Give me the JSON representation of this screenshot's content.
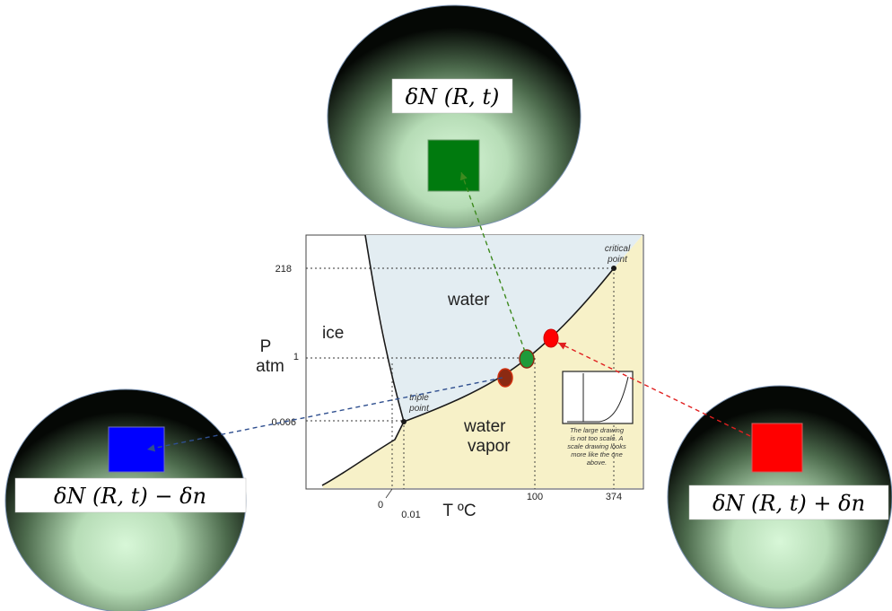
{
  "bubbles": {
    "top": {
      "label": "δN (R, t)",
      "square_color": "#007a0e",
      "arrow_color": "#3e8a1f"
    },
    "left": {
      "label": "δN (R, t) − δn",
      "square_color": "#0000ff",
      "arrow_color": "#2f4f8f"
    },
    "right": {
      "label": "δN (R, t) + δn",
      "square_color": "#ff0000",
      "arrow_color": "#e02020"
    }
  },
  "diagram": {
    "regions": {
      "ice": "ice",
      "water": "water",
      "vapor_line1": "water",
      "vapor_line2": "vapor"
    },
    "y_axis": {
      "label_line1": "P",
      "label_line2": "atm",
      "ticks": [
        "218",
        "1",
        "0.006"
      ]
    },
    "x_axis": {
      "label": "T ºC",
      "ticks": [
        "0",
        "0.01",
        "100",
        "374"
      ]
    },
    "annotations": {
      "critical_line1": "critical",
      "critical_line2": "point",
      "triple_line1": "triple",
      "triple_line2": "point"
    },
    "inset_note": [
      "The large drawing",
      "is not too scale.  A",
      "scale drawing looks",
      "more like the one",
      "above."
    ],
    "colors": {
      "water_fill": "#e3edf2",
      "vapor_fill": "#f7f1c8",
      "boundary": "#1a1a1a",
      "marker_brown": "#8b2a12",
      "marker_green": "#1e9a3a",
      "marker_red": "#ff0000"
    }
  }
}
